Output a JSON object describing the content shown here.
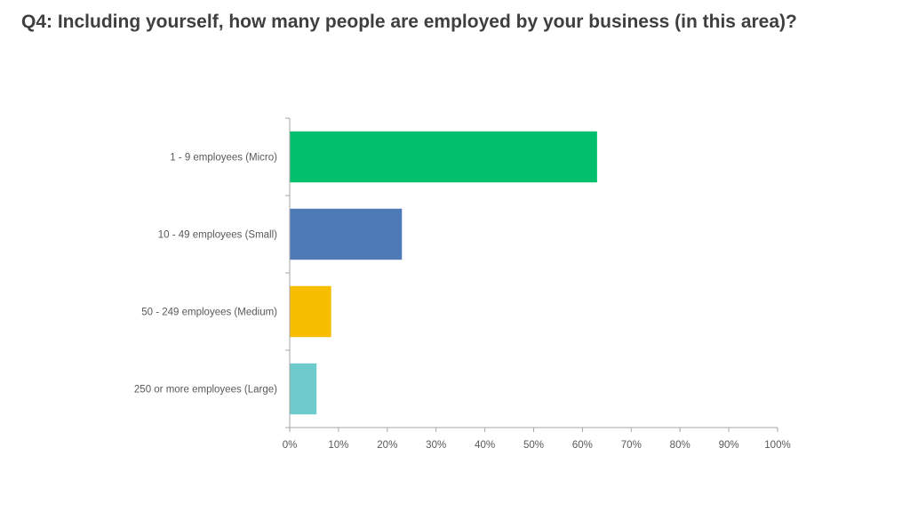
{
  "title": "Q4: Including yourself, how many people are employed by your business (in this area)?",
  "chart_data": {
    "type": "bar",
    "orientation": "horizontal",
    "categories": [
      "1 - 9  employees (Micro)",
      "10 - 49 employees (Small)",
      "50 - 249 employees (Medium)",
      "250 or more employees (Large)"
    ],
    "values": [
      63,
      23,
      8.5,
      5.5
    ],
    "colors": [
      "#00c06e",
      "#4f7ab8",
      "#f7be00",
      "#6ecbcb"
    ],
    "xlim": [
      0,
      100
    ],
    "x_ticks": [
      "0%",
      "10%",
      "20%",
      "30%",
      "40%",
      "50%",
      "60%",
      "70%",
      "80%",
      "90%",
      "100%"
    ],
    "xlabel": "",
    "ylabel": "",
    "grid": false,
    "legend": "none"
  }
}
